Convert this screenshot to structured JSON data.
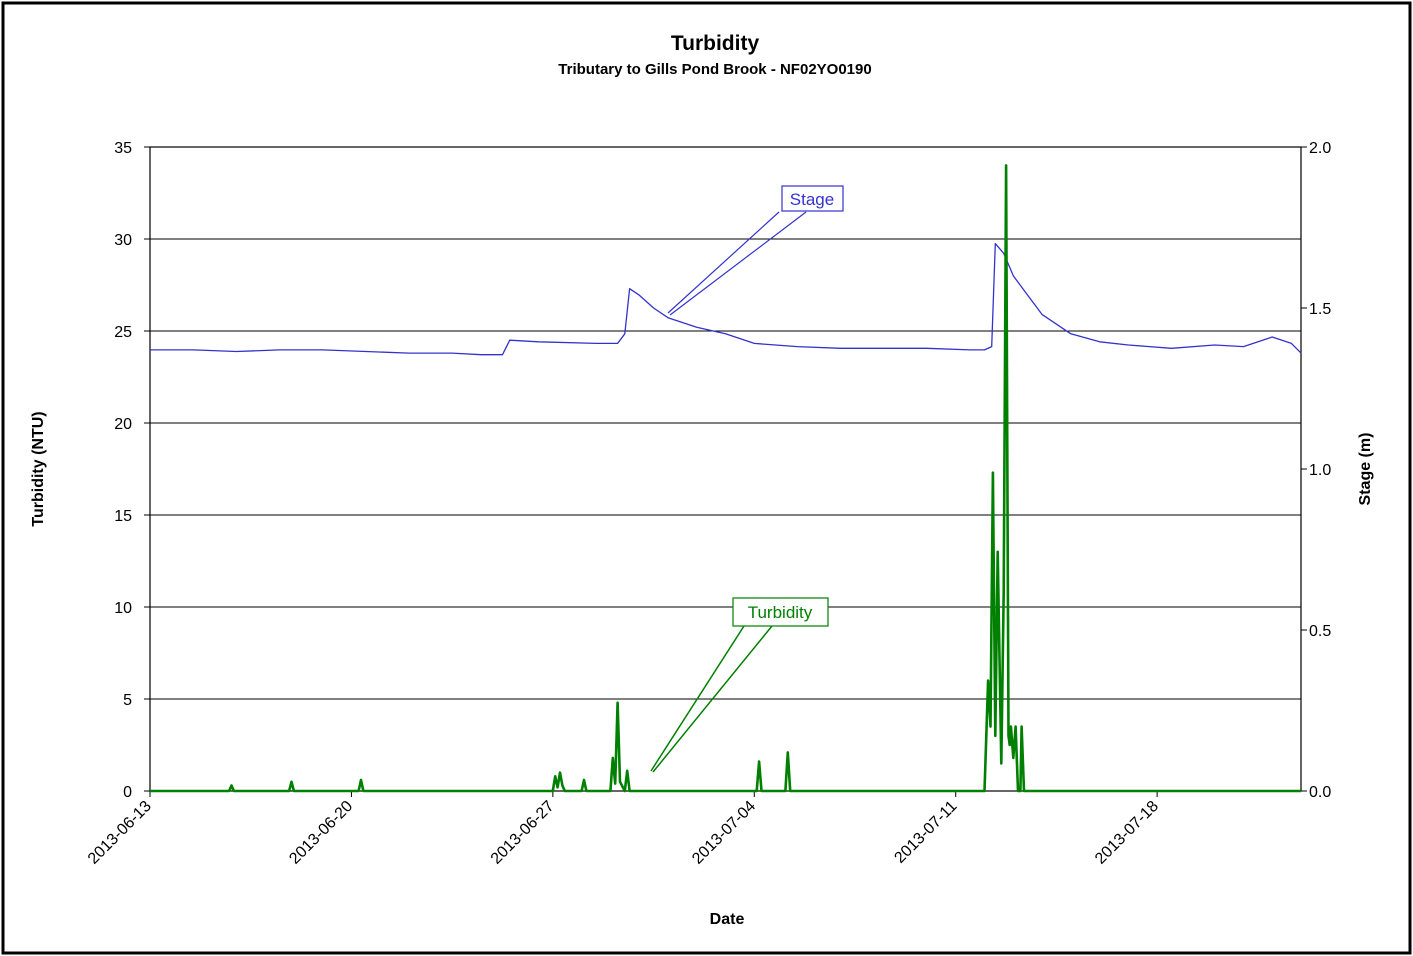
{
  "chart_data": {
    "type": "line",
    "title": "Turbidity",
    "subtitle": "Tributary to Gills Pond Brook - NF02YO0190",
    "xlabel": "Date",
    "ylabel_left": "Turbidity (NTU)",
    "ylabel_right": "Stage (m)",
    "x_range": [
      "2013-06-13",
      "2013-07-23"
    ],
    "x_ticks": [
      "2013-06-13",
      "2013-06-20",
      "2013-06-27",
      "2013-07-04",
      "2013-07-11",
      "2013-07-18"
    ],
    "ylim_left": [
      0,
      35
    ],
    "yticks_left": [
      "0",
      "5",
      "10",
      "15",
      "20",
      "25",
      "30",
      "35"
    ],
    "ylim_right": [
      0,
      2.0
    ],
    "yticks_right": [
      "0.0",
      "0.5",
      "1.0",
      "1.5",
      "2.0"
    ],
    "grid": "horizontal",
    "colors": {
      "stage": "#3333cc",
      "turbidity": "#008000",
      "axis": "#000000"
    },
    "series": [
      {
        "name": "Stage",
        "axis": "right",
        "callout": "Stage",
        "x": [
          "2013-06-13T00:00",
          "2013-06-14T12:00",
          "2013-06-16T00:00",
          "2013-06-17T12:00",
          "2013-06-19T00:00",
          "2013-06-20T12:00",
          "2013-06-22T00:00",
          "2013-06-23T12:00",
          "2013-06-24T12:00",
          "2013-06-25T06:00",
          "2013-06-25T12:00",
          "2013-06-26T12:00",
          "2013-06-28T12:00",
          "2013-06-29T06:00",
          "2013-06-29T12:00",
          "2013-06-29T16:00",
          "2013-06-30T00:00",
          "2013-06-30T12:00",
          "2013-07-01T00:00",
          "2013-07-02T00:00",
          "2013-07-03T00:00",
          "2013-07-04T00:00",
          "2013-07-05T12:00",
          "2013-07-07T00:00",
          "2013-07-08T12:00",
          "2013-07-10T00:00",
          "2013-07-11T12:00",
          "2013-07-12T00:00",
          "2013-07-12T06:00",
          "2013-07-12T09:00",
          "2013-07-12T16:00",
          "2013-07-13T00:00",
          "2013-07-13T12:00",
          "2013-07-14T00:00",
          "2013-07-15T00:00",
          "2013-07-16T00:00",
          "2013-07-17T00:00",
          "2013-07-18T12:00",
          "2013-07-20T00:00",
          "2013-07-21T00:00",
          "2013-07-22T00:00",
          "2013-07-22T16:00",
          "2013-07-23T00:00"
        ],
        "values": [
          1.37,
          1.37,
          1.365,
          1.37,
          1.37,
          1.365,
          1.36,
          1.36,
          1.355,
          1.355,
          1.4,
          1.395,
          1.39,
          1.39,
          1.42,
          1.56,
          1.54,
          1.5,
          1.47,
          1.44,
          1.42,
          1.39,
          1.38,
          1.375,
          1.375,
          1.375,
          1.37,
          1.37,
          1.38,
          1.7,
          1.67,
          1.6,
          1.54,
          1.48,
          1.42,
          1.395,
          1.385,
          1.375,
          1.385,
          1.38,
          1.41,
          1.39,
          1.36
        ]
      },
      {
        "name": "Turbidity",
        "axis": "left",
        "callout": "Turbidity",
        "x": [
          "2013-06-13T00:00",
          "2013-06-15T18:00",
          "2013-06-15T20:00",
          "2013-06-15T22:00",
          "2013-06-17T20:00",
          "2013-06-17T22:00",
          "2013-06-18T00:00",
          "2013-06-20T06:00",
          "2013-06-20T08:00",
          "2013-06-20T10:00",
          "2013-06-27T00:00",
          "2013-06-27T02:00",
          "2013-06-27T04:00",
          "2013-06-27T06:00",
          "2013-06-27T08:00",
          "2013-06-27T10:00",
          "2013-06-28T00:00",
          "2013-06-28T02:00",
          "2013-06-28T04:00",
          "2013-06-29T00:00",
          "2013-06-29T02:00",
          "2013-06-29T04:00",
          "2013-06-29T06:00",
          "2013-06-29T08:00",
          "2013-06-29T12:00",
          "2013-06-29T14:00",
          "2013-06-29T16:00",
          "2013-07-04T02:00",
          "2013-07-04T04:00",
          "2013-07-04T06:00",
          "2013-07-05T02:00",
          "2013-07-05T04:00",
          "2013-07-05T06:00",
          "2013-07-12T00:00",
          "2013-07-12T03:00",
          "2013-07-12T05:00",
          "2013-07-12T07:00",
          "2013-07-12T09:00",
          "2013-07-12T11:00",
          "2013-07-12T14:00",
          "2013-07-12T16:00",
          "2013-07-12T18:00",
          "2013-07-12T20:00",
          "2013-07-12T21:00",
          "2013-07-12T22:00",
          "2013-07-13T00:00",
          "2013-07-13T02:00",
          "2013-07-13T04:00",
          "2013-07-13T06:00",
          "2013-07-13T07:00",
          "2013-07-13T09:00",
          "2013-07-13T10:00",
          "2013-07-23T00:00"
        ],
        "values": [
          0,
          0,
          0.3,
          0,
          0,
          0.5,
          0,
          0,
          0.6,
          0,
          0,
          0.8,
          0.2,
          1.0,
          0.3,
          0,
          0,
          0.6,
          0,
          0,
          1.8,
          0.4,
          4.8,
          0.5,
          0,
          1.1,
          0,
          0,
          1.6,
          0,
          0,
          2.1,
          0,
          0,
          6.0,
          3.5,
          17.3,
          3.0,
          13.0,
          1.5,
          10.8,
          34.0,
          3.0,
          2.5,
          3.5,
          1.8,
          3.5,
          0,
          0,
          3.5,
          0,
          0,
          0
        ]
      }
    ]
  }
}
